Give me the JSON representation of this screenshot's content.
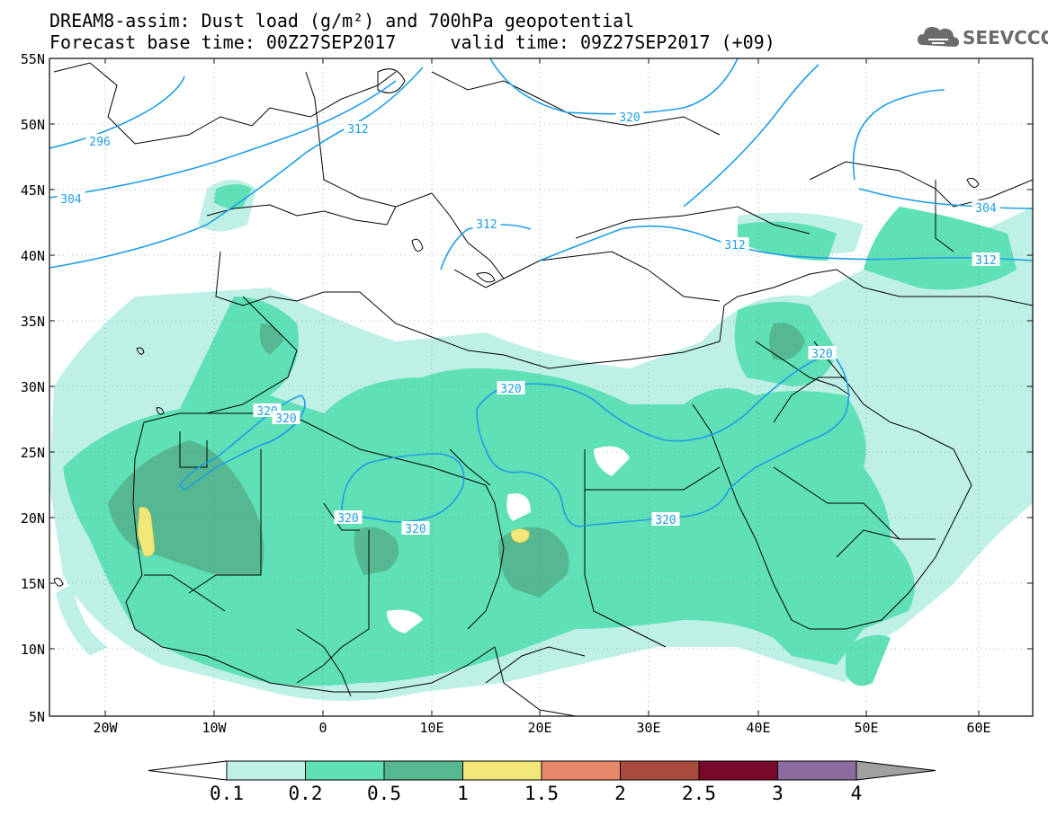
{
  "header": {
    "title_line1": "DREAM8-assim: Dust load (g/m²) and 700hPa geopotential",
    "title_line2": "Forecast base time: 00Z27SEP2017     valid time: 09Z27SEP2017 (+09)"
  },
  "logo": {
    "text": "SEEVCCC",
    "icon": "cloud-icon"
  },
  "map": {
    "lat_labels": [
      "55N",
      "50N",
      "45N",
      "40N",
      "35N",
      "30N",
      "25N",
      "20N",
      "15N",
      "10N",
      "5N"
    ],
    "lon_labels": [
      "20W",
      "10W",
      "0",
      "10E",
      "20E",
      "30E",
      "40E",
      "50E",
      "60E"
    ],
    "contour_labels": [
      "296",
      "304",
      "312",
      "312",
      "312",
      "320",
      "320",
      "320",
      "320",
      "320",
      "320",
      "320",
      "304",
      "312",
      "320"
    ]
  },
  "colorbar": {
    "levels": [
      "0.1",
      "0.2",
      "0.5",
      "1",
      "1.5",
      "2",
      "2.5",
      "3",
      "4"
    ],
    "colors": [
      "#bff0e6",
      "#5fe0b6",
      "#55b890",
      "#f2e87a",
      "#e8896b",
      "#a84a3c",
      "#7a0a2c",
      "#8c6b9e"
    ],
    "under_color": "#ffffff",
    "over_color": "#a0a0a0"
  },
  "colors": {
    "contour": "#1e9ee6",
    "border": "#000000",
    "frame": "#000000"
  }
}
